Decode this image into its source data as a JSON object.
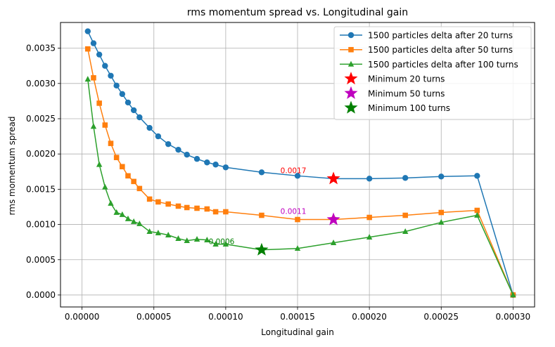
{
  "chart_data": {
    "type": "line",
    "title": "rms momentum spread vs. Longitudinal gain",
    "xlabel": "Longitudinal gain",
    "ylabel": "rms momentum spread",
    "xlim": [
      -1.5e-05,
      0.000315
    ],
    "ylim": [
      -0.00017,
      0.003865
    ],
    "xticks": [
      "0.00000",
      "0.00005",
      "0.00010",
      "0.00015",
      "0.00020",
      "0.00025",
      "0.00030"
    ],
    "xtick_values": [
      0,
      5e-05,
      0.0001,
      0.00015,
      0.0002,
      0.00025,
      0.0003
    ],
    "yticks": [
      "0.0000",
      "0.0005",
      "0.0010",
      "0.0015",
      "0.0020",
      "0.0025",
      "0.0030",
      "0.0035"
    ],
    "ytick_values": [
      0,
      0.0005,
      0.001,
      0.0015,
      0.002,
      0.0025,
      0.003,
      0.0035
    ],
    "grid": true,
    "legend_position": "top-right",
    "series": [
      {
        "name": "1500 particles delta after 20 turns",
        "color": "#1f77b4",
        "marker": "circle",
        "x": [
          4e-06,
          8e-06,
          1.2e-05,
          1.6e-05,
          2e-05,
          2.4e-05,
          2.8e-05,
          3.2e-05,
          3.6e-05,
          4e-05,
          4.7e-05,
          5.3e-05,
          6e-05,
          6.7e-05,
          7.3e-05,
          8e-05,
          8.7e-05,
          9.3e-05,
          0.0001,
          0.000125,
          0.00015,
          0.000175,
          0.0002,
          0.000225,
          0.00025,
          0.000275,
          0.0003
        ],
        "y": [
          0.00374,
          0.00357,
          0.00341,
          0.00325,
          0.00311,
          0.00297,
          0.00285,
          0.00273,
          0.00262,
          0.00252,
          0.00237,
          0.00225,
          0.00214,
          0.00206,
          0.00199,
          0.00193,
          0.00188,
          0.00185,
          0.00181,
          0.00174,
          0.00169,
          0.00165,
          0.00165,
          0.00166,
          0.00168,
          0.00169,
          0.0
        ]
      },
      {
        "name": "1500 particles delta after 50 turns",
        "color": "#ff7f0e",
        "marker": "square",
        "x": [
          4e-06,
          8e-06,
          1.2e-05,
          1.6e-05,
          2e-05,
          2.4e-05,
          2.8e-05,
          3.2e-05,
          3.6e-05,
          4e-05,
          4.7e-05,
          5.3e-05,
          6e-05,
          6.7e-05,
          7.3e-05,
          8e-05,
          8.7e-05,
          9.3e-05,
          0.0001,
          0.000125,
          0.00015,
          0.000175,
          0.0002,
          0.000225,
          0.00025,
          0.000275,
          0.0003
        ],
        "y": [
          0.00349,
          0.00308,
          0.00272,
          0.00241,
          0.00215,
          0.00195,
          0.00182,
          0.00169,
          0.00161,
          0.00151,
          0.00136,
          0.00132,
          0.00129,
          0.00126,
          0.00124,
          0.00123,
          0.00122,
          0.00118,
          0.00118,
          0.00113,
          0.00107,
          0.00107,
          0.0011,
          0.00113,
          0.00117,
          0.0012,
          0.0
        ]
      },
      {
        "name": "1500 particles delta after 100 turns",
        "color": "#2ca02c",
        "marker": "triangle",
        "x": [
          4e-06,
          8e-06,
          1.2e-05,
          1.6e-05,
          2e-05,
          2.4e-05,
          2.8e-05,
          3.2e-05,
          3.6e-05,
          4e-05,
          4.7e-05,
          5.3e-05,
          6e-05,
          6.7e-05,
          7.3e-05,
          8e-05,
          8.7e-05,
          9.3e-05,
          0.0001,
          0.000125,
          0.00015,
          0.000175,
          0.0002,
          0.000225,
          0.00025,
          0.000275,
          0.0003
        ],
        "y": [
          0.00306,
          0.00239,
          0.00185,
          0.00153,
          0.0013,
          0.00117,
          0.00114,
          0.00108,
          0.00104,
          0.00101,
          0.0009,
          0.00088,
          0.00085,
          0.0008,
          0.00077,
          0.00079,
          0.00078,
          0.00072,
          0.00072,
          0.00064,
          0.00066,
          0.00074,
          0.00082,
          0.0009,
          0.00103,
          0.00113,
          0.0
        ]
      }
    ],
    "minima": [
      {
        "name": "Minimum 20 turns",
        "color": "#ff0000",
        "x": 0.000175,
        "y": 0.00165,
        "label": "0.0017"
      },
      {
        "name": "Minimum 50 turns",
        "color": "#bf00bf",
        "x": 0.000175,
        "y": 0.00107,
        "label": "0.0011"
      },
      {
        "name": "Minimum 100 turns",
        "color": "#008000",
        "x": 0.000125,
        "y": 0.00064,
        "label": "0.0006"
      }
    ]
  }
}
